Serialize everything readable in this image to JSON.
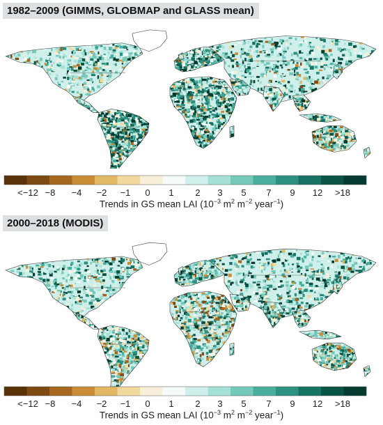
{
  "panels": [
    {
      "title": "1982–2009 (GIMMS, GLOBMAP and GLASS mean)",
      "variant": "long-term"
    },
    {
      "title": "2000–2018 (MODIS)",
      "variant": "modis"
    }
  ],
  "legend": {
    "label_prefix": "Trends in GS mean LAI (10",
    "label_exp1": "−3",
    "label_mid1": " m",
    "label_exp2": "2",
    "label_mid2": " m",
    "label_exp3": "−2",
    "label_mid3": " year",
    "label_exp4": "−1",
    "label_suffix": ")",
    "bins": [
      {
        "color": "#5a3208"
      },
      {
        "color": "#7d4a14"
      },
      {
        "color": "#a6671f"
      },
      {
        "color": "#c98d38"
      },
      {
        "color": "#e3b865"
      },
      {
        "color": "#f1d99e"
      },
      {
        "color": "#f8efd9"
      },
      {
        "color": "#f4fbf9"
      },
      {
        "color": "#cfefea"
      },
      {
        "color": "#a4e0d6"
      },
      {
        "color": "#74c9ba"
      },
      {
        "color": "#48ae9d"
      },
      {
        "color": "#2c9180"
      },
      {
        "color": "#177363"
      },
      {
        "color": "#0a5446"
      },
      {
        "color": "#043a2f"
      }
    ],
    "ticks": [
      "<−12",
      "−8",
      "−4",
      "−2",
      "−1",
      "0",
      "1",
      "2",
      "3",
      "5",
      "7",
      "9",
      "12",
      ">18"
    ]
  },
  "colors": {
    "ocean": "#ffffff",
    "land_base": "#ffffff",
    "border": "#333333",
    "title_bg": "#dde0e3"
  }
}
